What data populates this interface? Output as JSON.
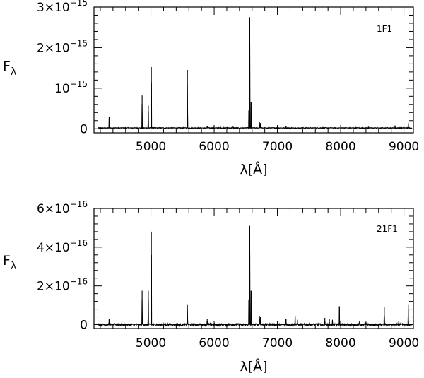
{
  "chart_data": [
    {
      "type": "line",
      "panel_label": "1F1",
      "xlabel": "λ[Å]",
      "ylabel": "Fλ",
      "xlim": [
        4100,
        9150
      ],
      "ylim": [
        -1e-16,
        3e-15
      ],
      "x_ticks": [
        5000,
        6000,
        7000,
        8000,
        9000
      ],
      "x_tick_labels": [
        "5000",
        "6000",
        "7000",
        "8000",
        "9000"
      ],
      "y_ticks": [
        0,
        1e-15,
        2e-15,
        3e-15
      ],
      "y_tick_labels": [
        {
          "mantissa": "0",
          "base": "",
          "exp": ""
        },
        {
          "mantissa": "",
          "base": "10",
          "exp": "−15"
        },
        {
          "mantissa": "2×",
          "base": "10",
          "exp": "−15"
        },
        {
          "mantissa": "3×",
          "base": "10",
          "exp": "−15"
        }
      ],
      "continuum": 2e-17,
      "lines": [
        {
          "x": 4340,
          "y": 3e-16
        },
        {
          "x": 4861,
          "y": 8.2e-16
        },
        {
          "x": 4959,
          "y": 5.7e-16
        },
        {
          "x": 5007,
          "y": 1.52e-15
        },
        {
          "x": 5577,
          "y": 1.45e-15
        },
        {
          "x": 5890,
          "y": 7e-17
        },
        {
          "x": 6300,
          "y": 5e-17
        },
        {
          "x": 6548,
          "y": 4.5e-16
        },
        {
          "x": 6563,
          "y": 2.75e-15
        },
        {
          "x": 6584,
          "y": 6.5e-16
        },
        {
          "x": 6717,
          "y": 1.7e-16
        },
        {
          "x": 6731,
          "y": 1.4e-16
        },
        {
          "x": 7136,
          "y": 6e-17
        },
        {
          "x": 8440,
          "y": 5e-17
        },
        {
          "x": 8860,
          "y": 8e-17
        },
        {
          "x": 9069,
          "y": 1.5e-16
        }
      ]
    },
    {
      "type": "line",
      "panel_label": "21F1",
      "xlabel": "λ[Å]",
      "ylabel": "Fλ",
      "xlim": [
        4100,
        9150
      ],
      "ylim": [
        -2e-17,
        6e-16
      ],
      "x_ticks": [
        5000,
        6000,
        7000,
        8000,
        9000
      ],
      "x_tick_labels": [
        "5000",
        "6000",
        "7000",
        "8000",
        "9000"
      ],
      "y_ticks": [
        0,
        2e-16,
        4e-16,
        6e-16
      ],
      "y_tick_labels": [
        {
          "mantissa": "0",
          "base": "",
          "exp": ""
        },
        {
          "mantissa": "2×",
          "base": "10",
          "exp": "−16"
        },
        {
          "mantissa": "4×",
          "base": "10",
          "exp": "−16"
        },
        {
          "mantissa": "6×",
          "base": "10",
          "exp": "−16"
        }
      ],
      "continuum": 0.0,
      "lines": [
        {
          "x": 4340,
          "y": 3e-17
        },
        {
          "x": 4861,
          "y": 1.75e-16
        },
        {
          "x": 4959,
          "y": 1.75e-16
        },
        {
          "x": 5007,
          "y": 4.8e-16
        },
        {
          "x": 5577,
          "y": 1.05e-16
        },
        {
          "x": 5890,
          "y": 3e-17
        },
        {
          "x": 6548,
          "y": 1.3e-16
        },
        {
          "x": 6563,
          "y": 5.1e-16
        },
        {
          "x": 6584,
          "y": 1.75e-16
        },
        {
          "x": 6717,
          "y": 4.5e-17
        },
        {
          "x": 6731,
          "y": 4e-17
        },
        {
          "x": 7136,
          "y": 3e-17
        },
        {
          "x": 7280,
          "y": 4.5e-17
        },
        {
          "x": 7320,
          "y": 2.5e-17
        },
        {
          "x": 7750,
          "y": 3.5e-17
        },
        {
          "x": 7820,
          "y": 3e-17
        },
        {
          "x": 7870,
          "y": 2.5e-17
        },
        {
          "x": 7980,
          "y": 9.5e-17
        },
        {
          "x": 8300,
          "y": 2e-17
        },
        {
          "x": 8400,
          "y": 1.5e-17
        },
        {
          "x": 8690,
          "y": 9e-17
        },
        {
          "x": 8920,
          "y": 2e-17
        },
        {
          "x": 9069,
          "y": 1.05e-16
        }
      ]
    }
  ]
}
